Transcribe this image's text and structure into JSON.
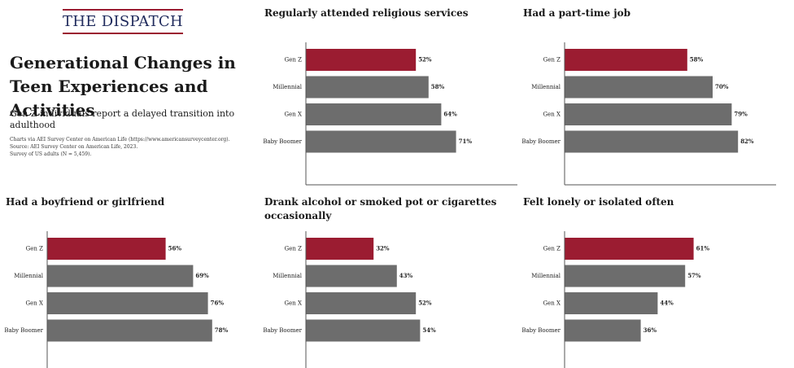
{
  "logo_text": "THE DISPATCH",
  "title": "Generational Changes in Teen Experiences and Activities",
  "subtitle": "Gen Z individuals report a delayed transition into adulthood",
  "notes": [
    "Charts via AEI Survey Center on American Life (https://www.americansurveycenter.org).",
    "Source: AEI Survey Center on American Life, 2023.",
    "Survey of US adults (N = 5,459)."
  ],
  "colors": {
    "highlight": "#9b1c31",
    "bar": "#6d6d6d",
    "axis": "#555555",
    "logo_text": "#1f2a5c"
  },
  "chart_data": [
    {
      "type": "bar",
      "orientation": "horizontal",
      "title": "Regularly attended religious services",
      "categories": [
        "Gen Z",
        "Millennial",
        "Gen X",
        "Baby Boomer"
      ],
      "values": [
        52,
        58,
        64,
        71
      ],
      "labels": [
        "52%",
        "58%",
        "64%",
        "71%"
      ],
      "xlim": [
        0,
        100
      ],
      "grid": false,
      "highlight": "Gen Z"
    },
    {
      "type": "bar",
      "orientation": "horizontal",
      "title": "Had a part-time job",
      "categories": [
        "Gen Z",
        "Millennial",
        "Gen X",
        "Baby Boomer"
      ],
      "values": [
        58,
        70,
        79,
        82
      ],
      "labels": [
        "58%",
        "70%",
        "79%",
        "82%"
      ],
      "xlim": [
        0,
        100
      ],
      "grid": false,
      "highlight": "Gen Z"
    },
    {
      "type": "bar",
      "orientation": "horizontal",
      "title": "Had a boyfriend or girlfriend",
      "categories": [
        "Gen Z",
        "Millennial",
        "Gen X",
        "Baby Boomer"
      ],
      "values": [
        56,
        69,
        76,
        78
      ],
      "labels": [
        "56%",
        "69%",
        "76%",
        "78%"
      ],
      "xlim": [
        0,
        100
      ],
      "grid": false,
      "highlight": "Gen Z"
    },
    {
      "type": "bar",
      "orientation": "horizontal",
      "title": "Drank alcohol or smoked pot or cigarettes occasionally",
      "categories": [
        "Gen Z",
        "Millennial",
        "Gen X",
        "Baby Boomer"
      ],
      "values": [
        32,
        43,
        52,
        54
      ],
      "labels": [
        "32%",
        "43%",
        "52%",
        "54%"
      ],
      "xlim": [
        0,
        100
      ],
      "grid": false,
      "highlight": "Gen Z"
    },
    {
      "type": "bar",
      "orientation": "horizontal",
      "title": "Felt lonely or isolated often",
      "categories": [
        "Gen Z",
        "Millennial",
        "Gen X",
        "Baby Boomer"
      ],
      "values": [
        61,
        57,
        44,
        36
      ],
      "labels": [
        "61%",
        "57%",
        "44%",
        "36%"
      ],
      "xlim": [
        0,
        100
      ],
      "grid": false,
      "highlight": "Gen Z"
    }
  ]
}
